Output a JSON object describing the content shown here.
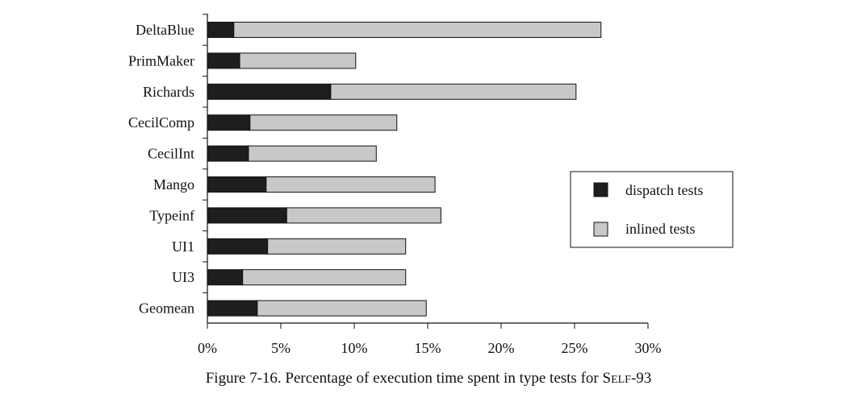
{
  "chart_data": {
    "type": "bar",
    "orientation": "horizontal",
    "stacked": true,
    "categories": [
      "DeltaBlue",
      "PrimMaker",
      "Richards",
      "CecilComp",
      "CecilInt",
      "Mango",
      "Typeinf",
      "UI1",
      "UI3",
      "Geomean"
    ],
    "series": [
      {
        "name": "dispatch tests",
        "color": "#1e1e1e",
        "values": [
          1.8,
          2.2,
          8.4,
          2.9,
          2.8,
          4.0,
          5.4,
          4.1,
          2.4,
          3.4
        ]
      },
      {
        "name": "inlined tests",
        "color": "#c8c8c8",
        "values": [
          25.0,
          7.9,
          16.7,
          10.0,
          8.7,
          11.5,
          10.5,
          9.4,
          11.1,
          11.5
        ]
      }
    ],
    "xlim": [
      0,
      30
    ],
    "x_ticks": [
      0,
      5,
      10,
      15,
      20,
      25,
      30
    ],
    "x_tick_labels": [
      "0%",
      "5%",
      "10%",
      "15%",
      "20%",
      "25%",
      "30%"
    ],
    "legend_position": "right",
    "grid": false
  },
  "caption": {
    "prefix": "Figure 7-16.  Percentage of execution time spent in type tests for ",
    "sc_first": "S",
    "sc_rest": "ELF",
    "suffix": "-93"
  }
}
